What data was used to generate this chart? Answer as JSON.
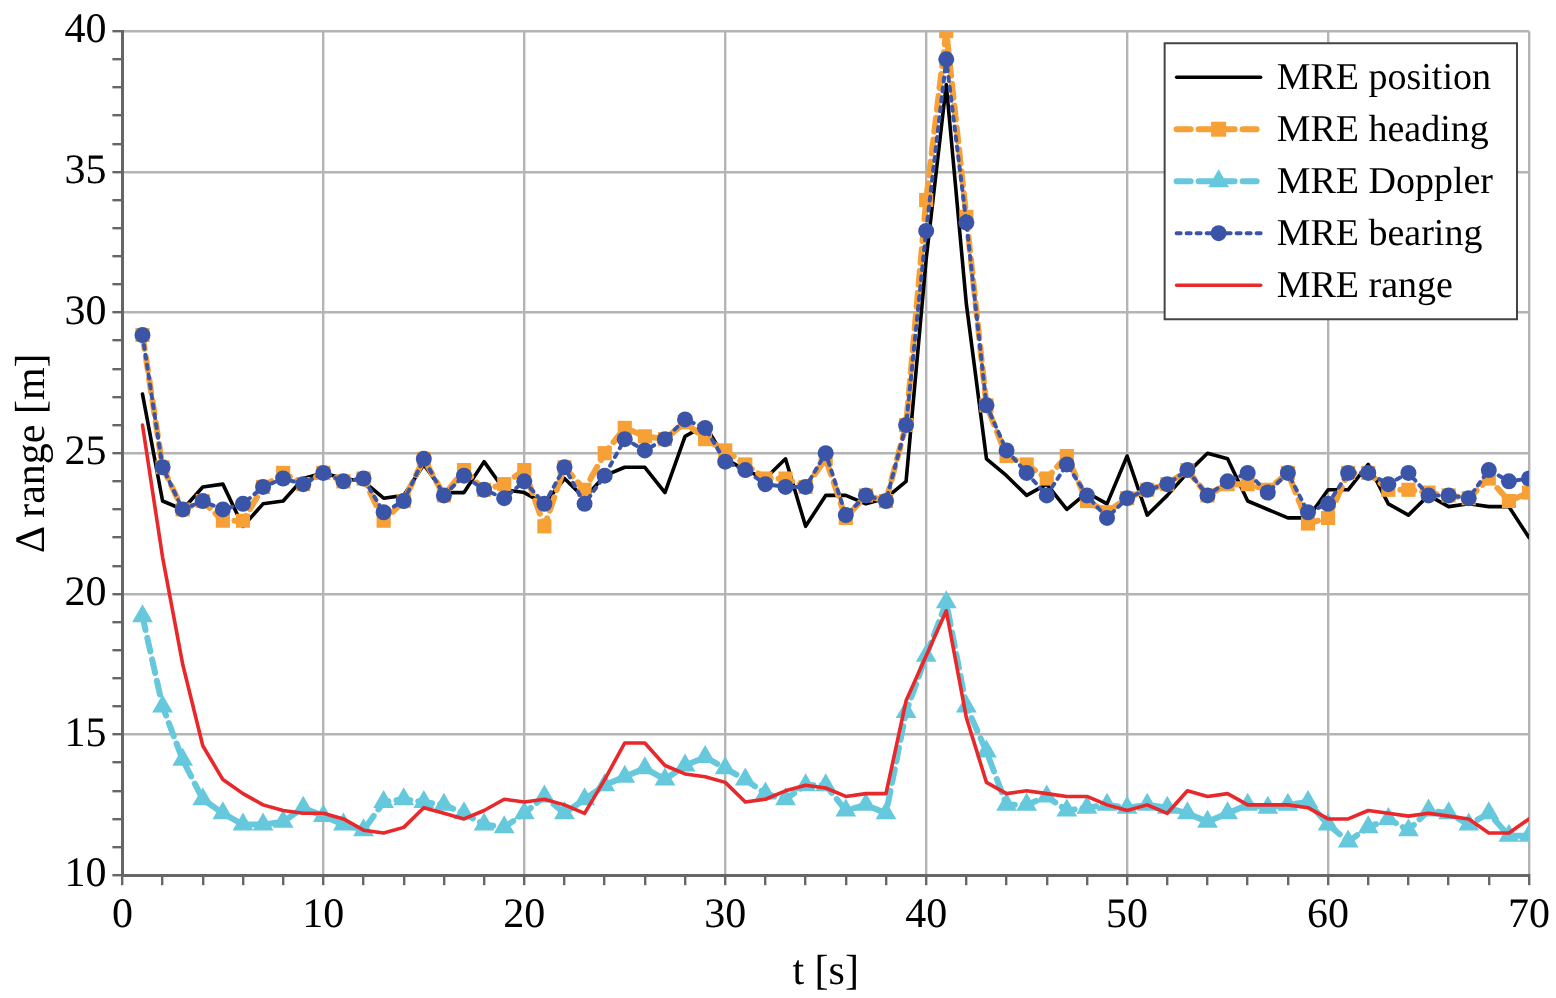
{
  "chart_data": {
    "type": "line",
    "xlabel": "t [s]",
    "ylabel": "Δ range [m]",
    "x": [
      1,
      2,
      3,
      4,
      5,
      6,
      7,
      8,
      9,
      10,
      11,
      12,
      13,
      14,
      15,
      16,
      17,
      18,
      19,
      20,
      21,
      22,
      23,
      24,
      25,
      26,
      27,
      28,
      29,
      30,
      31,
      32,
      33,
      34,
      35,
      36,
      37,
      38,
      39,
      40,
      41,
      42,
      43,
      44,
      45,
      46,
      47,
      48,
      49,
      50,
      51,
      52,
      53,
      54,
      55,
      56,
      57,
      58,
      59,
      60,
      61,
      62,
      63,
      64,
      65,
      66,
      67,
      68,
      69,
      70
    ],
    "series": [
      {
        "name": "MRE position",
        "color": "#000000",
        "marker": "none",
        "line_style": "solid",
        "values": [
          27.1,
          23.3,
          23.0,
          23.8,
          23.9,
          22.4,
          23.2,
          23.3,
          24.1,
          24.3,
          24.1,
          24.0,
          23.4,
          23.5,
          24.6,
          23.6,
          23.6,
          24.7,
          23.7,
          23.6,
          23.2,
          24.1,
          23.4,
          24.2,
          24.5,
          24.5,
          23.6,
          25.6,
          26.0,
          24.8,
          24.4,
          24.1,
          24.8,
          22.4,
          23.5,
          23.5,
          23.2,
          23.4,
          24.0,
          31.9,
          38.1,
          30.3,
          24.8,
          24.2,
          23.5,
          23.9,
          23.0,
          23.6,
          23.2,
          24.9,
          22.8,
          23.5,
          24.3,
          25.0,
          24.8,
          23.3,
          23.0,
          22.7,
          22.7,
          23.7,
          23.7,
          24.6,
          23.2,
          22.8,
          23.5,
          23.1,
          23.2,
          23.1,
          23.1,
          22.0
        ]
      },
      {
        "name": "MRE heading",
        "color": "#f7a035",
        "marker": "square",
        "line_style": "dashed",
        "values": [
          29.2,
          24.5,
          23.0,
          23.3,
          22.6,
          22.6,
          23.8,
          24.3,
          23.9,
          24.3,
          24.0,
          24.1,
          22.6,
          23.3,
          24.8,
          23.5,
          24.4,
          23.7,
          23.9,
          24.4,
          22.4,
          24.5,
          23.7,
          25.0,
          25.9,
          25.6,
          25.5,
          26.1,
          25.5,
          25.1,
          24.6,
          24.1,
          24.1,
          23.8,
          24.8,
          22.7,
          23.5,
          23.3,
          26.0,
          34.0,
          40.0,
          33.4,
          26.7,
          24.9,
          24.6,
          24.1,
          24.9,
          23.3,
          22.9,
          23.4,
          23.7,
          23.9,
          24.4,
          23.5,
          23.9,
          23.9,
          23.7,
          24.3,
          22.5,
          22.7,
          24.3,
          24.3,
          23.7,
          23.7,
          23.6,
          23.5,
          23.4,
          24.1,
          23.3,
          23.6
        ]
      },
      {
        "name": "MRE Doppler",
        "color": "#66c8dc",
        "marker": "triangle",
        "line_style": "dashed",
        "values": [
          19.2,
          16.0,
          14.1,
          12.7,
          12.2,
          11.8,
          11.8,
          11.9,
          12.4,
          12.1,
          11.8,
          11.6,
          12.6,
          12.7,
          12.6,
          12.5,
          12.2,
          11.8,
          11.7,
          12.2,
          12.8,
          12.2,
          12.7,
          13.2,
          13.5,
          13.8,
          13.4,
          13.9,
          14.2,
          13.8,
          13.4,
          12.9,
          12.7,
          13.2,
          13.2,
          12.3,
          12.5,
          12.2,
          15.8,
          17.8,
          19.7,
          16.0,
          14.4,
          12.5,
          12.5,
          12.8,
          12.3,
          12.4,
          12.5,
          12.4,
          12.5,
          12.4,
          12.2,
          11.9,
          12.2,
          12.5,
          12.4,
          12.5,
          12.6,
          11.8,
          11.2,
          11.7,
          12.0,
          11.6,
          12.3,
          12.2,
          11.8,
          12.2,
          11.4,
          11.4
        ]
      },
      {
        "name": "MRE bearing",
        "color": "#3a55a8",
        "marker": "circle",
        "line_style": "dotted",
        "values": [
          29.2,
          24.5,
          23.0,
          23.3,
          23.0,
          23.2,
          23.8,
          24.1,
          23.9,
          24.3,
          24.0,
          24.1,
          22.9,
          23.3,
          24.8,
          23.5,
          24.2,
          23.7,
          23.4,
          24.0,
          23.2,
          24.5,
          23.2,
          24.2,
          25.5,
          25.1,
          25.5,
          26.2,
          25.9,
          24.7,
          24.4,
          23.9,
          23.8,
          23.8,
          25.0,
          22.8,
          23.5,
          23.3,
          26.0,
          32.9,
          39.0,
          33.2,
          26.7,
          25.1,
          24.3,
          23.5,
          24.6,
          23.5,
          22.7,
          23.4,
          23.7,
          23.9,
          24.4,
          23.5,
          24.0,
          24.3,
          23.6,
          24.3,
          22.9,
          23.2,
          24.3,
          24.3,
          23.9,
          24.3,
          23.5,
          23.5,
          23.4,
          24.4,
          24.0,
          24.1
        ]
      },
      {
        "name": "MRE range",
        "color": "#e8282a",
        "marker": "none",
        "line_style": "solid",
        "values": [
          26.0,
          21.3,
          17.5,
          14.6,
          13.4,
          12.9,
          12.5,
          12.3,
          12.2,
          12.2,
          12.0,
          11.6,
          11.5,
          11.7,
          12.4,
          12.2,
          12.0,
          12.3,
          12.7,
          12.6,
          12.7,
          12.5,
          12.2,
          13.4,
          14.7,
          14.7,
          13.9,
          13.6,
          13.5,
          13.3,
          12.6,
          12.7,
          13.0,
          13.2,
          13.1,
          12.8,
          12.9,
          12.9,
          16.2,
          17.8,
          19.4,
          15.6,
          13.3,
          12.9,
          13.0,
          12.9,
          12.8,
          12.8,
          12.5,
          12.3,
          12.5,
          12.2,
          13.0,
          12.8,
          12.9,
          12.5,
          12.5,
          12.5,
          12.4,
          12.0,
          12.0,
          12.3,
          12.2,
          12.1,
          12.2,
          12.1,
          12.0,
          11.5,
          11.5,
          12.0
        ]
      }
    ],
    "xlim": [
      0,
      70
    ],
    "xticks": [
      0,
      {
        "value": 2,
        "label": null
      },
      {
        "value": 4,
        "label": null
      },
      {
        "value": 6,
        "label": null
      },
      {
        "value": 8,
        "label": null
      },
      10,
      {
        "value": 12,
        "label": null
      },
      {
        "value": 14,
        "label": null
      },
      {
        "value": 16,
        "label": null
      },
      {
        "value": 18,
        "label": null
      },
      20,
      {
        "value": 22,
        "label": null
      },
      {
        "value": 24,
        "label": null
      },
      {
        "value": 26,
        "label": null
      },
      {
        "value": 28,
        "label": null
      },
      30,
      {
        "value": 32,
        "label": null
      },
      {
        "value": 34,
        "label": null
      },
      {
        "value": 36,
        "label": null
      },
      {
        "value": 38,
        "label": null
      },
      40,
      {
        "value": 42,
        "label": null
      },
      {
        "value": 44,
        "label": null
      },
      {
        "value": 46,
        "label": null
      },
      {
        "value": 48,
        "label": null
      },
      50,
      {
        "value": 52,
        "label": null
      },
      {
        "value": 54,
        "label": null
      },
      {
        "value": 56,
        "label": null
      },
      {
        "value": 58,
        "label": null
      },
      60,
      {
        "value": 62,
        "label": null
      },
      {
        "value": 64,
        "label": null
      },
      {
        "value": 66,
        "label": null
      },
      {
        "value": 68,
        "label": null
      },
      70
    ],
    "ylim": [
      10,
      40
    ],
    "yticks": [
      10,
      {
        "value": 11,
        "label": null
      },
      {
        "value": 12,
        "label": null
      },
      {
        "value": 13,
        "label": null
      },
      {
        "value": 14,
        "label": null
      },
      15,
      {
        "value": 16,
        "label": null
      },
      {
        "value": 17,
        "label": null
      },
      {
        "value": 18,
        "label": null
      },
      {
        "value": 19,
        "label": null
      },
      20,
      {
        "value": 21,
        "label": null
      },
      {
        "value": 22,
        "label": null
      },
      {
        "value": 23,
        "label": null
      },
      {
        "value": 24,
        "label": null
      },
      25,
      {
        "value": 26,
        "label": null
      },
      {
        "value": 27,
        "label": null
      },
      {
        "value": 28,
        "label": null
      },
      {
        "value": 29,
        "label": null
      },
      30,
      {
        "value": 31,
        "label": null
      },
      {
        "value": 32,
        "label": null
      },
      {
        "value": 33,
        "label": null
      },
      {
        "value": 34,
        "label": null
      },
      35,
      {
        "value": 36,
        "label": null
      },
      {
        "value": 37,
        "label": null
      },
      {
        "value": 38,
        "label": null
      },
      {
        "value": 39,
        "label": null
      },
      40
    ],
    "grid": true,
    "legend": "top right"
  }
}
